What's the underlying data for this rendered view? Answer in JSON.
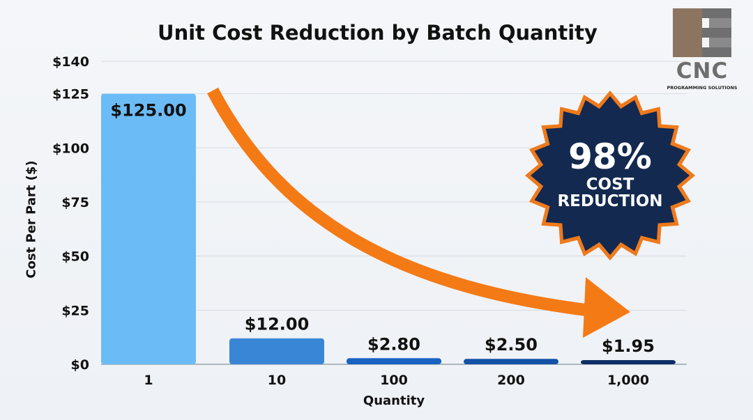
{
  "chart_data": {
    "type": "bar",
    "title": "Unit Cost Reduction by Batch Quantity",
    "xlabel": "Quantity",
    "ylabel": "Cost Per Part ($)",
    "categories": [
      "1",
      "10",
      "100",
      "200",
      "1,000"
    ],
    "values": [
      125.0,
      12.0,
      2.8,
      2.5,
      1.95
    ],
    "data_labels": [
      "$125.00",
      "$12.00",
      "$2.80",
      "$2.50",
      "$1.95"
    ],
    "ylim": [
      0,
      140
    ],
    "yticks": [
      0,
      25,
      50,
      75,
      100,
      125,
      140
    ],
    "ytick_labels": [
      "$0",
      "$25",
      "$50",
      "$75",
      "$100",
      "$125",
      "$140"
    ],
    "grid": true,
    "bar_colors": [
      "#6bbcf6",
      "#3a86d6",
      "#1862c2",
      "#1452a8",
      "#0d2f66"
    ]
  },
  "badge": {
    "percent": "98%",
    "line1": "COST",
    "line2": "REDUCTION",
    "fill_color": "#13294f",
    "ring_color": "#ee7a1c"
  },
  "arrow": {
    "color": "#f47a16",
    "icon": "trend-down-arrow-icon"
  },
  "logo": {
    "name": "CNC",
    "subtitle": "PROGRAMMING SOLUTIONS"
  }
}
